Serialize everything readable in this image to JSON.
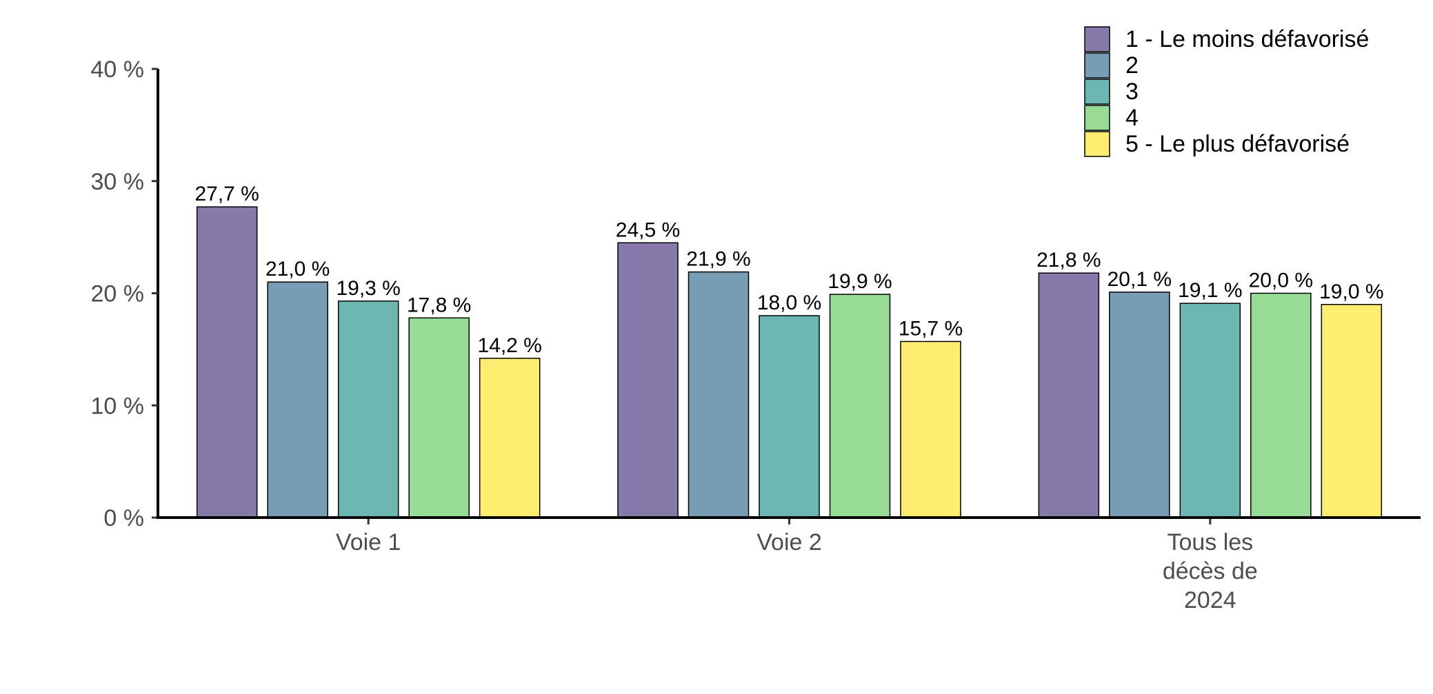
{
  "chart_data": {
    "type": "bar",
    "title": "",
    "xlabel": "",
    "ylabel": "",
    "ylim": [
      0,
      40
    ],
    "yticks": [
      0,
      10,
      20,
      30,
      40
    ],
    "ytick_labels": [
      "0 %",
      "10 %",
      "20 %",
      "30 %",
      "40 %"
    ],
    "categories": [
      "Voie 1",
      "Voie 2",
      "Tous les décès de 2024"
    ],
    "category_label_lines": [
      [
        "Voie 1"
      ],
      [
        "Voie 2"
      ],
      [
        "Tous les",
        "décès de",
        "2024"
      ]
    ],
    "series": [
      {
        "name": "1 - Le moins défavorisé",
        "color": "#8779a9",
        "values": [
          27.7,
          24.5,
          21.8
        ],
        "labels": [
          "27,7 %",
          "24,5 %",
          "21,8 %"
        ]
      },
      {
        "name": "2",
        "color": "#769db3",
        "values": [
          21.0,
          21.9,
          20.1
        ],
        "labels": [
          "21,0 %",
          "21,9 %",
          "20,1 %"
        ]
      },
      {
        "name": "3",
        "color": "#6db7b3",
        "values": [
          19.3,
          18.0,
          19.1
        ],
        "labels": [
          "19,3 %",
          "18,0 %",
          "19,1 %"
        ]
      },
      {
        "name": "4",
        "color": "#97db97",
        "values": [
          17.8,
          19.9,
          20.0
        ],
        "labels": [
          "17,8 %",
          "19,9 %",
          "20,0 %"
        ]
      },
      {
        "name": "5 - Le plus défavorisé",
        "color": "#feed71",
        "values": [
          14.2,
          15.7,
          19.0
        ],
        "labels": [
          "14,2 %",
          "15,7 %",
          "19,0 %"
        ]
      }
    ],
    "legend": {
      "position": "top-right"
    },
    "grid": false
  }
}
